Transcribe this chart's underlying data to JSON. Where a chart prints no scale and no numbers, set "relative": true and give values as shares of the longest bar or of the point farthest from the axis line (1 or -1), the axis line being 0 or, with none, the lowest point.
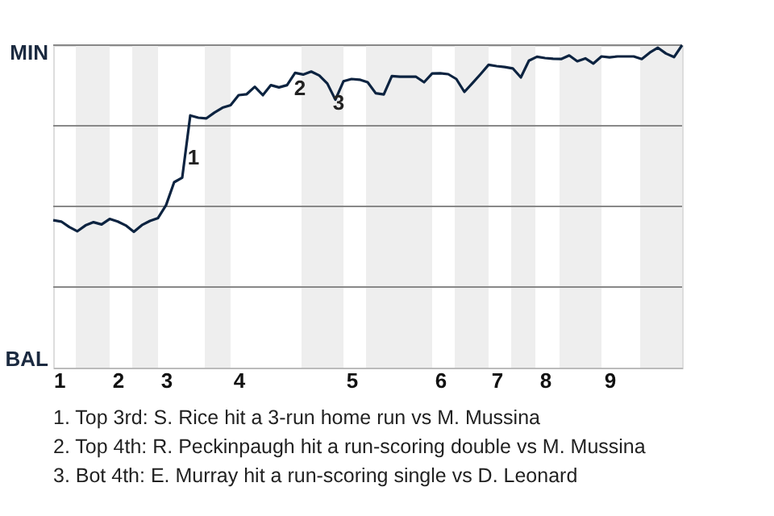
{
  "chart_data": {
    "type": "line",
    "relative": true,
    "categories": [
      "1",
      null,
      null,
      null,
      null,
      null,
      null,
      null,
      "2",
      null,
      null,
      null,
      null,
      null,
      "3",
      null,
      null,
      null,
      null,
      null,
      null,
      null,
      null,
      "4",
      null,
      null,
      null,
      null,
      null,
      null,
      null,
      null,
      null,
      null,
      null,
      null,
      null,
      "5",
      null,
      null,
      null,
      null,
      null,
      null,
      null,
      null,
      null,
      null,
      "6",
      null,
      null,
      null,
      null,
      null,
      null,
      "7",
      null,
      null,
      null,
      null,
      null,
      "8",
      null,
      null,
      null,
      null,
      null,
      null,
      null,
      "9",
      null,
      null,
      null,
      null,
      null,
      null,
      null,
      null,
      null
    ],
    "series": [
      {
        "color": "#0c2340",
        "values": [
          0.457,
          0.453,
          0.436,
          0.423,
          0.441,
          0.451,
          0.444,
          0.461,
          0.453,
          0.441,
          0.421,
          0.442,
          0.455,
          0.464,
          0.504,
          0.575,
          0.589,
          0.782,
          0.775,
          0.773,
          0.791,
          0.806,
          0.814,
          0.845,
          0.848,
          0.871,
          0.845,
          0.876,
          0.869,
          0.876,
          0.914,
          0.909,
          0.918,
          0.906,
          0.881,
          0.831,
          0.888,
          0.895,
          0.893,
          0.885,
          0.851,
          0.847,
          0.904,
          0.902,
          0.902,
          0.902,
          0.885,
          0.912,
          0.913,
          0.91,
          0.895,
          0.855,
          0.882,
          0.91,
          0.939,
          0.935,
          0.932,
          0.928,
          0.9,
          0.952,
          0.964,
          0.96,
          0.958,
          0.957,
          0.968,
          0.95,
          0.959,
          0.943,
          0.965,
          0.962,
          0.965,
          0.965,
          0.965,
          0.957,
          0.977,
          0.992,
          0.974,
          0.963,
          1.0
        ],
        "name": null
      }
    ],
    "grid": false,
    "marker": "none",
    "line_style": "solid",
    "ref_lines": [
      {
        "axis": "y",
        "value": 0.25,
        "color": "#888888"
      },
      {
        "axis": "y",
        "value": 0.5,
        "color": "#888888"
      },
      {
        "axis": "y",
        "value": 0.75,
        "color": "#888888"
      },
      {
        "axis": "y",
        "value": 1.0,
        "color": "#888888"
      }
    ],
    "annotations": [
      "MIN",
      "BAL",
      "1",
      "2",
      "3",
      "1. Top 3rd: S. Rice hit a 3-run home run vs M. Mussina",
      "2. Top 4th: R. Peckinpaugh hit a run-scoring double vs M. Mussina",
      "3. Bot 4th: E. Murray hit a run-scoring single vs D. Leonard"
    ]
  }
}
